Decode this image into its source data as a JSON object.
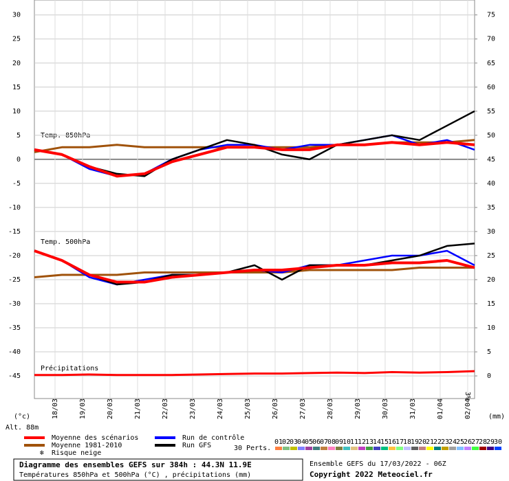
{
  "chart_data": {
    "type": "line",
    "categories": [
      null,
      "18/03",
      "19/03",
      "20/03",
      "21/03",
      "22/03",
      "23/03",
      "24/03",
      "25/03",
      "26/03",
      "27/03",
      "28/03",
      "29/03",
      "30/03",
      "31/03",
      "01/04",
      "02/04"
    ],
    "ylim": [
      -49.7,
      33.1
    ],
    "yticks": [
      30,
      25,
      20,
      15,
      10,
      5,
      0,
      -5,
      -10,
      -15,
      -20,
      -25,
      -30,
      -35,
      -40,
      -45
    ],
    "y2lim": [
      -4.7,
      78.1
    ],
    "y2ticks": [
      75,
      70,
      65,
      60,
      55,
      50,
      45,
      40,
      35,
      30,
      25,
      20,
      15,
      10,
      5,
      0
    ],
    "ylabel": "(°c)",
    "y2label": "(mm)",
    "altitude": "Alt. 88m",
    "grid": true,
    "t850_label": "Temp. 850hPa",
    "t500_label": "Temp. 500hPa",
    "series": [
      {
        "name": "Moyenne des scénarios",
        "color": "#ff0000",
        "width": 4,
        "t850": [
          2,
          1,
          -1.5,
          -3.5,
          -3,
          -0.5,
          1,
          2.5,
          2.5,
          2,
          2,
          3,
          3,
          3.5,
          3,
          3.5,
          3
        ],
        "t500": [
          -19,
          -21,
          -24,
          -25.5,
          -25.5,
          -24.5,
          -24,
          -23.5,
          -23,
          -23,
          -22.5,
          -22,
          -22,
          -21.5,
          -21.5,
          -21,
          -22.5
        ]
      },
      {
        "name": "Moyenne 1981-2010",
        "color": "#a0520a",
        "width": 3,
        "t850": [
          1.5,
          2.5,
          2.5,
          3,
          2.5,
          2.5,
          2.5,
          2.5,
          2.5,
          2.5,
          2.5,
          3,
          3,
          3.5,
          3.5,
          3.5,
          4
        ],
        "t500": [
          -24.5,
          -24,
          -24,
          -24,
          -23.5,
          -23.5,
          -23.5,
          -23.5,
          -23.5,
          -23.5,
          -23,
          -23,
          -23,
          -23,
          -22.5,
          -22.5,
          -22.5
        ]
      },
      {
        "name": "Run de contrôle",
        "color": "#0000ff",
        "width": 2.5,
        "t850": [
          2,
          1,
          -2,
          -3.5,
          -3,
          0,
          2,
          3,
          3,
          2,
          3,
          3,
          4,
          5,
          3,
          4,
          2
        ],
        "t500": [
          -19,
          -21,
          -24.5,
          -26,
          -25,
          -24,
          -24,
          -23.5,
          -23,
          -23.5,
          -22,
          -22,
          -21,
          -20,
          -20,
          -19,
          -22
        ]
      },
      {
        "name": "Run GFS",
        "color": "#000000",
        "width": 2.5,
        "t850": [
          2,
          1,
          -1.5,
          -3,
          -3.5,
          0,
          2,
          4,
          3,
          1,
          0,
          3,
          4,
          5,
          4,
          7,
          10
        ],
        "t500": [
          -19,
          -21,
          -24,
          -26,
          -25.5,
          -24,
          -24,
          -23.5,
          -22,
          -25,
          -22,
          -22,
          -22,
          -21,
          -20,
          -18,
          -17.5
        ]
      }
    ],
    "precipitation": {
      "label": "Précipitations",
      "color": "#ff0000",
      "values": [
        0.2,
        0.2,
        0.3,
        0.2,
        0.2,
        0.2,
        0.3,
        0.4,
        0.5,
        0.5,
        0.6,
        0.7,
        0.6,
        0.8,
        0.7,
        0.8,
        1
      ]
    },
    "snow_risk": {
      "label": "Risque neige",
      "values": [
        null,
        null,
        null,
        null,
        null,
        null,
        null,
        null,
        null,
        null,
        null,
        null,
        null,
        null,
        null,
        null,
        3
      ],
      "value_labels": [
        null,
        null,
        null,
        null,
        null,
        null,
        null,
        null,
        null,
        null,
        null,
        null,
        null,
        null,
        null,
        null,
        "3%"
      ]
    },
    "members_label": "30 Perts.",
    "members": [
      {
        "name": "01",
        "color": "#ff8040"
      },
      {
        "name": "02",
        "color": "#80c080"
      },
      {
        "name": "03",
        "color": "#c0c000"
      },
      {
        "name": "04",
        "color": "#8080ff"
      },
      {
        "name": "05",
        "color": "#a040a0"
      },
      {
        "name": "06",
        "color": "#408080"
      },
      {
        "name": "07",
        "color": "#c08040"
      },
      {
        "name": "08",
        "color": "#ff80c0"
      },
      {
        "name": "09",
        "color": "#808040"
      },
      {
        "name": "10",
        "color": "#40c0c0"
      },
      {
        "name": "11",
        "color": "#e0c080"
      },
      {
        "name": "12",
        "color": "#c040c0"
      },
      {
        "name": "13",
        "color": "#40a040"
      },
      {
        "name": "14",
        "color": "#4040c0"
      },
      {
        "name": "15",
        "color": "#00c080"
      },
      {
        "name": "16",
        "color": "#ffc040"
      },
      {
        "name": "17",
        "color": "#80ff80"
      },
      {
        "name": "18",
        "color": "#c0c0ff"
      },
      {
        "name": "19",
        "color": "#606060"
      },
      {
        "name": "20",
        "color": "#c08080"
      },
      {
        "name": "21",
        "color": "#ffff00"
      },
      {
        "name": "22",
        "color": "#008080"
      },
      {
        "name": "23",
        "color": "#c0a000"
      },
      {
        "name": "24",
        "color": "#a0a0a0"
      },
      {
        "name": "25",
        "color": "#80c0ff"
      },
      {
        "name": "26",
        "color": "#c080ff"
      },
      {
        "name": "27",
        "color": "#40ff40"
      },
      {
        "name": "28",
        "color": "#a00000"
      },
      {
        "name": "29",
        "color": "#400080"
      },
      {
        "name": "30",
        "color": "#0040ff"
      }
    ],
    "footer": {
      "title": "Diagramme des ensembles GEFS sur 384h : 44.3N 11.9E",
      "subtitle": "Températures 850hPa et 500hPa (°C) , précipitations (mm)",
      "run": "Ensemble GEFS du 17/03/2022 - 06Z",
      "copyright": "Copyright 2022 Meteociel.fr"
    }
  }
}
